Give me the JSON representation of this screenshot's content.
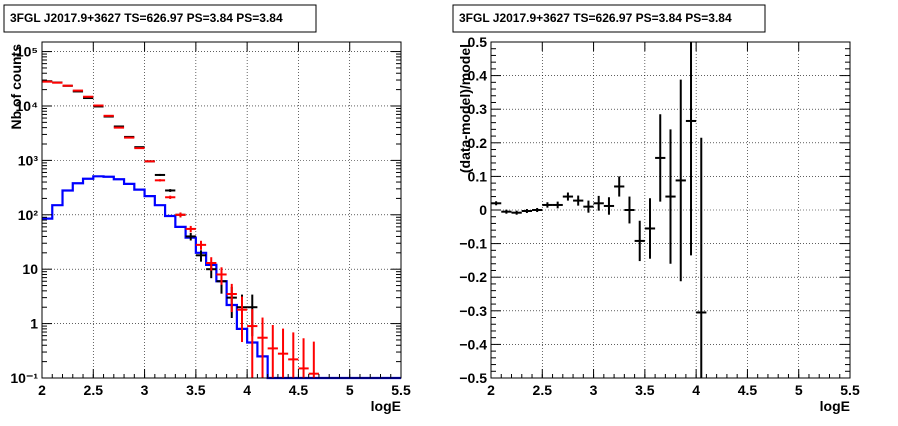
{
  "colors": {
    "data": "#000000",
    "model": "#ff0000",
    "component": "#0000ff",
    "grid": "#000000"
  },
  "chart_data": [
    {
      "type": "histogram",
      "title": "3FGL J2017.9+3627 TS=626.97 PS=3.84 PS=3.84",
      "xlabel": "logE",
      "ylabel": "Nb of counts",
      "xlim": [
        2,
        5.5
      ],
      "ylim": [
        0.1,
        150000
      ],
      "yscale": "log",
      "grid": true,
      "x_ticks": [
        "2",
        "2.5",
        "3",
        "3.5",
        "4",
        "4.5",
        "5",
        "5.5"
      ],
      "y_ticks": [
        "10⁻¹",
        "1",
        "10",
        "10²",
        "10³",
        "10⁴",
        "10⁵"
      ],
      "bin_width": 0.1,
      "bin_low_edges": [
        2.0,
        2.1,
        2.2,
        2.3,
        2.4,
        2.5,
        2.6,
        2.7,
        2.8,
        2.9,
        3.0,
        3.1,
        3.2,
        3.3,
        3.4,
        3.5,
        3.6,
        3.7,
        3.8,
        3.9,
        4.0,
        4.1,
        4.2,
        4.3,
        4.4,
        4.5,
        4.6,
        4.7,
        4.8,
        4.9,
        5.0,
        5.1,
        5.2,
        5.3,
        5.4
      ],
      "series": [
        {
          "role": "data",
          "style": "points-with-errors",
          "color": "#000000",
          "values": [
            28500,
            27000,
            23500,
            18500,
            14000,
            9800,
            6400,
            4200,
            2700,
            1750,
            960,
            540,
            280,
            100,
            40,
            18,
            10,
            6,
            3,
            2,
            2,
            0,
            0,
            0,
            0,
            0,
            0,
            0,
            0,
            0,
            0,
            0,
            0,
            0,
            0
          ]
        },
        {
          "role": "model",
          "style": "points-with-errors",
          "color": "#ff0000",
          "values": [
            28000,
            26800,
            23600,
            19200,
            14800,
            10200,
            6600,
            4000,
            2620,
            1680,
            960,
            430,
            210,
            100,
            55,
            28,
            13,
            8,
            3.5,
            1.8,
            0.9,
            0.55,
            0.35,
            0.28,
            0.22,
            0.15,
            0.12,
            0,
            0,
            0,
            0,
            0,
            0,
            0,
            0
          ]
        },
        {
          "role": "component",
          "style": "step",
          "color": "#0000ff",
          "values": [
            85,
            150,
            280,
            380,
            460,
            510,
            500,
            450,
            370,
            290,
            220,
            150,
            95,
            60,
            38,
            20,
            12,
            6,
            2.2,
            0.8,
            0.45,
            0.25,
            0.1,
            0.1,
            0.1,
            0.1,
            0.1,
            0.1,
            0.1,
            0.1,
            0.1,
            0.1,
            0.1,
            0.1,
            0.1
          ]
        }
      ]
    },
    {
      "type": "scatter",
      "title": "3FGL J2017.9+3627 TS=626.97 PS=3.84 PS=3.84",
      "xlabel": "logE",
      "ylabel": "(data-model)/model",
      "xlim": [
        2,
        5.5
      ],
      "ylim": [
        -0.5,
        0.5
      ],
      "grid": true,
      "x_ticks": [
        "2",
        "2.5",
        "3",
        "3.5",
        "4",
        "4.5",
        "5",
        "5.5"
      ],
      "y_ticks": [
        "−0.5",
        "−0.4",
        "−0.3",
        "−0.2",
        "−0.1",
        "0",
        "0.1",
        "0.2",
        "0.3",
        "0.4",
        "0.5"
      ],
      "x_halfwidth": 0.05,
      "x": [
        2.05,
        2.15,
        2.25,
        2.35,
        2.45,
        2.55,
        2.65,
        2.75,
        2.85,
        2.95,
        3.05,
        3.15,
        3.25,
        3.35,
        3.45,
        3.55,
        3.65,
        3.75,
        3.85,
        3.95,
        4.05
      ],
      "y": [
        0.02,
        -0.005,
        -0.008,
        -0.003,
        0.0,
        0.015,
        0.015,
        0.04,
        0.028,
        0.01,
        0.02,
        0.012,
        0.07,
        0.0,
        -0.092,
        -0.055,
        0.155,
        0.04,
        0.088,
        0.265,
        -0.305
      ],
      "yerr": [
        0.006,
        0.006,
        0.006,
        0.006,
        0.006,
        0.008,
        0.01,
        0.012,
        0.015,
        0.018,
        0.022,
        0.026,
        0.03,
        0.04,
        0.06,
        0.09,
        0.13,
        0.2,
        0.3,
        0.4,
        0.52
      ]
    }
  ]
}
